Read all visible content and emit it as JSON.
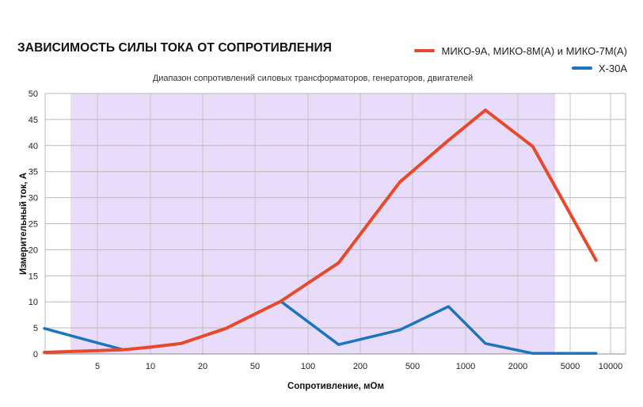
{
  "chart_data": {
    "type": "line",
    "title": "ЗАВИСИМОСТЬ СИЛЫ ТОКА ОТ СОПРОТИВЛЕНИЯ",
    "xlabel": "Сопротивление, мОм",
    "ylabel": "Измерительный ток, А",
    "x_scale": "log",
    "x_ticks": [
      "5",
      "10",
      "20",
      "50",
      "100",
      "200",
      "500",
      "1000",
      "2000",
      "5000",
      "10000"
    ],
    "ylim": [
      0,
      50
    ],
    "y_ticks": [
      "0",
      "5",
      "10",
      "15",
      "20",
      "25",
      "30",
      "35",
      "40",
      "45",
      "50"
    ],
    "grid": true,
    "legend_position": "top-right",
    "highlight_band": {
      "label": "Диапазон сопротивлений силовых трансформаторов, генераторов, двигателей",
      "color": "#e8dcfa"
    },
    "series": [
      {
        "name": "МИКО-9А, МИКО-8М(А) и МИКО-7М(А)",
        "color": "#e8492a",
        "points": [
          [
            2.5,
            0.3
          ],
          [
            7,
            0.8
          ],
          [
            10,
            1.3
          ],
          [
            15,
            2
          ],
          [
            30,
            4.9
          ],
          [
            70,
            10.1
          ],
          [
            150,
            17.5
          ],
          [
            400,
            33
          ],
          [
            800,
            41
          ],
          [
            1300,
            46.8
          ],
          [
            2600,
            39.8
          ],
          [
            7800,
            18
          ]
        ]
      },
      {
        "name": "X-30A",
        "color": "#1a74bf",
        "points": [
          [
            2.5,
            4.9
          ],
          [
            7,
            0.8
          ],
          [
            10,
            1.3
          ],
          [
            15,
            2
          ],
          [
            30,
            4.9
          ],
          [
            70,
            10.1
          ],
          [
            150,
            1.8
          ],
          [
            400,
            4.6
          ],
          [
            800,
            9.1
          ],
          [
            1300,
            2
          ],
          [
            2600,
            0.1
          ],
          [
            7800,
            0.1
          ]
        ]
      }
    ]
  }
}
